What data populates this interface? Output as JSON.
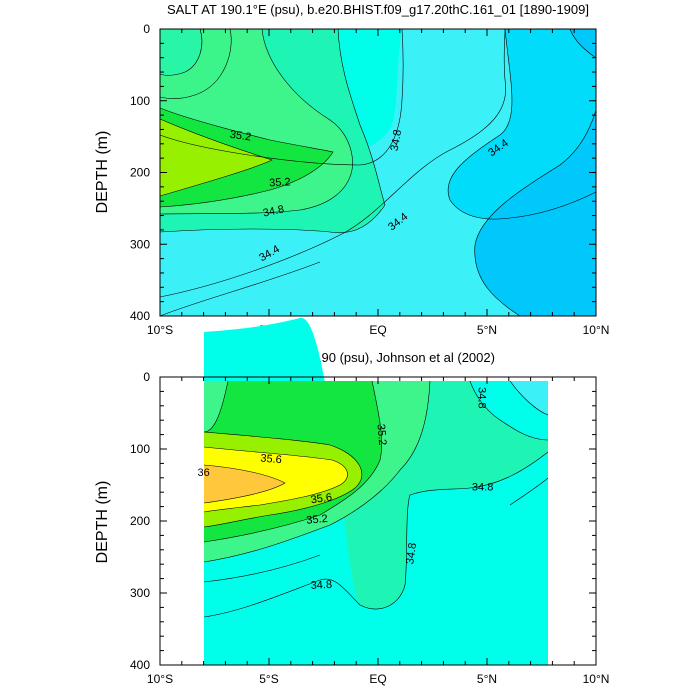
{
  "chart_data": [
    {
      "type": "contour",
      "title": "SALT AT 190.1°E (psu), b.e20.BHIST.f09_g17.20thC.161_01 [1890-1909]",
      "xlabel": "",
      "ylabel": "DEPTH (m)",
      "xlim": [
        -10,
        10
      ],
      "ylim": [
        400,
        0
      ],
      "x_ticks": [
        {
          "value": -10,
          "label": "10°S"
        },
        {
          "value": -5,
          "label": "5°S"
        },
        {
          "value": 0,
          "label": "EQ"
        },
        {
          "value": 5,
          "label": "5°N"
        },
        {
          "value": 10,
          "label": "10°N"
        }
      ],
      "y_ticks": [
        0,
        100,
        200,
        300,
        400
      ],
      "fill_levels": [
        {
          "min": 34.0,
          "color": "#00C8FA"
        },
        {
          "min": 34.2,
          "color": "#00DCFA"
        },
        {
          "min": 34.4,
          "color": "#3CF0F8"
        },
        {
          "min": 34.6,
          "color": "#00FFEA"
        },
        {
          "min": 34.8,
          "color": "#1EF5B4"
        },
        {
          "min": 35.0,
          "color": "#3DF58A"
        },
        {
          "min": 35.2,
          "color": "#14E641"
        },
        {
          "min": 35.4,
          "color": "#96F000"
        }
      ],
      "contour_labels": [
        {
          "text": "35.2",
          "lat": -6.3,
          "depth": 148,
          "angle": 8
        },
        {
          "text": "35.2",
          "lat": -4.5,
          "depth": 213,
          "angle": -3
        },
        {
          "text": "34.8",
          "lat": -4.8,
          "depth": 253,
          "angle": -12
        },
        {
          "text": "34.8",
          "lat": 0.8,
          "depth": 155,
          "angle": -80
        },
        {
          "text": "34.4",
          "lat": 0.9,
          "depth": 268,
          "angle": -38
        },
        {
          "text": "34.4",
          "lat": 5.5,
          "depth": 165,
          "angle": -35
        },
        {
          "text": "34.4",
          "lat": -5.0,
          "depth": 312,
          "angle": -30
        }
      ]
    },
    {
      "type": "contour",
      "title": "SALT AT 190 (psu), Johnson et al (2002)",
      "xlabel": "",
      "ylabel": "DEPTH (m)",
      "xlim": [
        -10,
        10
      ],
      "ylim": [
        400,
        0
      ],
      "x_ticks": [
        {
          "value": -10,
          "label": "10°S"
        },
        {
          "value": -5,
          "label": "5°S"
        },
        {
          "value": 0,
          "label": "EQ"
        },
        {
          "value": 5,
          "label": "5°N"
        },
        {
          "value": 10,
          "label": "10°N"
        }
      ],
      "y_ticks": [
        0,
        100,
        200,
        300,
        400
      ],
      "data_extent": {
        "lat": [
          -8,
          8
        ],
        "depth": [
          5,
          400
        ]
      },
      "fill_levels": [
        {
          "min": 34.6,
          "color": "#00FFEA"
        },
        {
          "min": 34.8,
          "color": "#1EF5B4"
        },
        {
          "min": 35.0,
          "color": "#3DF58A"
        },
        {
          "min": 35.2,
          "color": "#14E641"
        },
        {
          "min": 35.4,
          "color": "#96F000"
        },
        {
          "min": 35.6,
          "color": "#FFFF00"
        },
        {
          "min": 36.0,
          "color": "#FFC83C"
        }
      ],
      "contour_labels": [
        {
          "text": "36",
          "lat": -8.0,
          "depth": 132,
          "angle": 0
        },
        {
          "text": "35.6",
          "lat": -4.9,
          "depth": 113,
          "angle": 5
        },
        {
          "text": "35.6",
          "lat": -2.6,
          "depth": 168,
          "angle": -8
        },
        {
          "text": "35.2",
          "lat": -2.8,
          "depth": 197,
          "angle": -5
        },
        {
          "text": "35.2",
          "lat": 0.2,
          "depth": 80,
          "angle": 85
        },
        {
          "text": "34.8",
          "lat": 4.8,
          "depth": 29,
          "angle": 90
        },
        {
          "text": "34.8",
          "lat": 4.8,
          "depth": 152,
          "angle": 0
        },
        {
          "text": "34.8",
          "lat": 1.5,
          "depth": 245,
          "angle": -82
        },
        {
          "text": "34.8",
          "lat": -2.6,
          "depth": 288,
          "angle": -3
        }
      ]
    }
  ]
}
